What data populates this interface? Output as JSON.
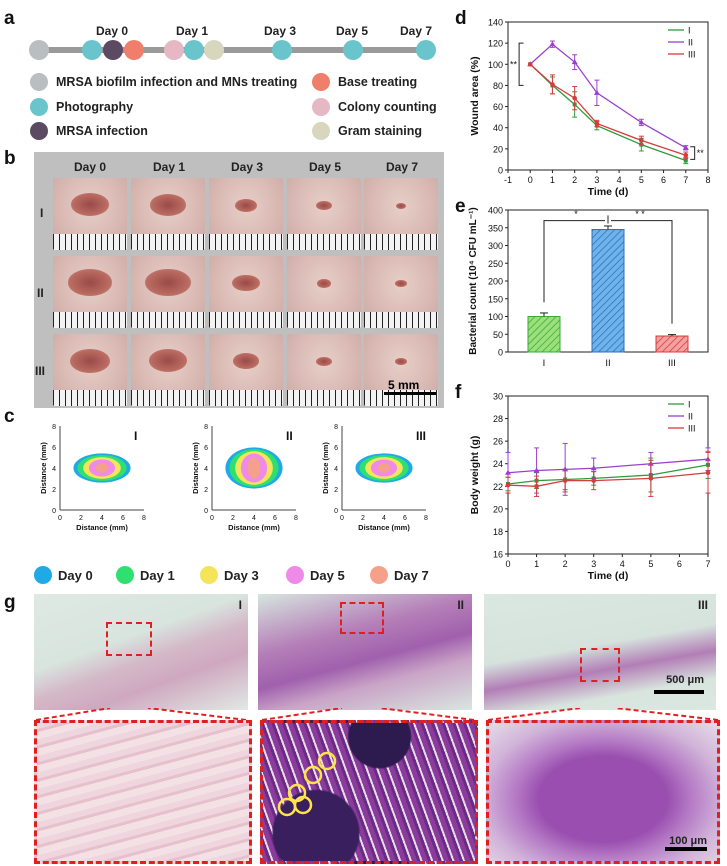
{
  "panels": {
    "a": "a",
    "b": "b",
    "c": "c",
    "d": "d",
    "e": "e",
    "f": "f",
    "g": "g"
  },
  "timeline": {
    "days": [
      "Day 0",
      "Day 1",
      "Day 3",
      "Day 5",
      "Day 7"
    ],
    "legend": [
      {
        "label": "MRSA biofilm infection and MNs treating",
        "color": "#b9bfc0"
      },
      {
        "label": "Base treating",
        "color": "#ef7f6a"
      },
      {
        "label": "Photography",
        "color": "#6ac4cc"
      },
      {
        "label": "Colony counting",
        "color": "#e6b7c4"
      },
      {
        "label": "MRSA infection",
        "color": "#5c4a63"
      },
      {
        "label": "Gram staining",
        "color": "#d9d6bf"
      }
    ]
  },
  "photos": {
    "columns": [
      "Day 0",
      "Day 1",
      "Day 3",
      "Day 5",
      "Day 7"
    ],
    "rows": [
      "I",
      "II",
      "III"
    ],
    "scale_label": "5 mm"
  },
  "contours": {
    "groups": [
      "I",
      "II",
      "III"
    ],
    "xlabel": "Distance (mm)",
    "ylabel": "Distance (mm)",
    "ticks": [
      "0",
      "2",
      "4",
      "6",
      "8"
    ],
    "legend": [
      {
        "label": "Day 0",
        "color": "#1fa9e6"
      },
      {
        "label": "Day 1",
        "color": "#2fe070"
      },
      {
        "label": "Day 3",
        "color": "#f5e45a"
      },
      {
        "label": "Day 5",
        "color": "#f08ae8"
      },
      {
        "label": "Day 7",
        "color": "#f4a08a"
      }
    ]
  },
  "histology": {
    "groups": [
      "I",
      "II",
      "III"
    ],
    "scale_top": "500 μm",
    "scale_bottom": "100 μm"
  },
  "colors": {
    "I": "#2e9a3a",
    "II": "#9b3fd0",
    "III": "#d63c3c"
  },
  "chart_data": [
    {
      "id": "d",
      "type": "line",
      "xlabel": "Time (d)",
      "ylabel": "Wound area (%)",
      "xlim": [
        -1,
        8
      ],
      "ylim": [
        0,
        140
      ],
      "xticks": [
        -1,
        0,
        1,
        2,
        3,
        4,
        5,
        6,
        7,
        8
      ],
      "yticks": [
        0,
        20,
        40,
        60,
        80,
        100,
        120,
        140
      ],
      "x": [
        0,
        1,
        2,
        3,
        5,
        7
      ],
      "series": [
        {
          "name": "I",
          "values": [
            100,
            80,
            62,
            42,
            24,
            9
          ],
          "err": [
            0,
            8,
            12,
            4,
            6,
            3
          ]
        },
        {
          "name": "II",
          "values": [
            100,
            119,
            102,
            73,
            45,
            21
          ],
          "err": [
            0,
            3,
            7,
            12,
            3,
            2
          ]
        },
        {
          "name": "III",
          "values": [
            100,
            81,
            68,
            44,
            28,
            14
          ],
          "err": [
            0,
            9,
            11,
            3,
            4,
            3
          ]
        }
      ],
      "annotations": [
        "**",
        "**"
      ]
    },
    {
      "id": "e",
      "type": "bar",
      "xlabel": "",
      "ylabel": "Bacterial count (10⁴ CFU mL⁻¹)",
      "categories": [
        "I",
        "II",
        "III"
      ],
      "values": [
        100,
        345,
        45
      ],
      "err": [
        10,
        10,
        4
      ],
      "ylim": [
        0,
        400
      ],
      "yticks": [
        0,
        50,
        100,
        150,
        200,
        250,
        300,
        350,
        400
      ],
      "annotations": [
        "*",
        "* *"
      ]
    },
    {
      "id": "f",
      "type": "line",
      "xlabel": "Time (d)",
      "ylabel": "Body weight (g)",
      "xlim": [
        0,
        7
      ],
      "ylim": [
        16,
        30
      ],
      "xticks": [
        0,
        1,
        2,
        3,
        4,
        5,
        6,
        7
      ],
      "yticks": [
        16,
        18,
        20,
        22,
        24,
        26,
        28,
        30
      ],
      "x": [
        0,
        1,
        2,
        3,
        5,
        7
      ],
      "series": [
        {
          "name": "I",
          "values": [
            22.2,
            22.5,
            22.6,
            22.7,
            23.0,
            23.9
          ],
          "err": [
            0.6,
            0.7,
            0.9,
            0.6,
            1.5,
            1.2
          ]
        },
        {
          "name": "II",
          "values": [
            23.2,
            23.4,
            23.5,
            23.6,
            24.0,
            24.4
          ],
          "err": [
            1.8,
            2.0,
            2.3,
            0.9,
            1.0,
            1.0
          ]
        },
        {
          "name": "III",
          "values": [
            22.1,
            22.0,
            22.5,
            22.5,
            22.7,
            23.2
          ],
          "err": [
            0.7,
            0.9,
            1.0,
            0.8,
            1.6,
            1.8
          ]
        }
      ]
    }
  ]
}
